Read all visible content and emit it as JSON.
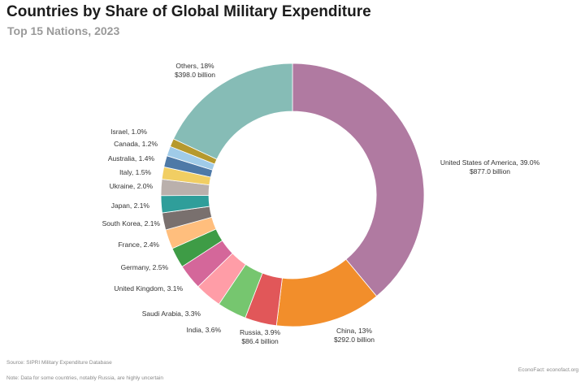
{
  "title": "Countries by Share of Global Military Expenditure",
  "subtitle": "Top 15 Nations, 2023",
  "footer": {
    "source": "Source: SIPRI Military Expenditure Database",
    "note": "Note: Data for some countries, notably Russia, are highly uncertain",
    "credit": "EconoFact: econofact.org"
  },
  "chart_data": {
    "type": "pie",
    "donut": true,
    "title": "Countries by Share of Global Military Expenditure",
    "subtitle": "Top 15 Nations, 2023",
    "unit": "%",
    "slices": [
      {
        "name": "United States of America",
        "value": 39.0,
        "display": "United States of America, 39.0%",
        "amount": "$877.0 billion",
        "color": "#b07aa1"
      },
      {
        "name": "China",
        "value": 13,
        "display": "China, 13%",
        "amount": "$292.0 billion",
        "color": "#f28e2b"
      },
      {
        "name": "Russia",
        "value": 3.9,
        "display": "Russia, 3.9%",
        "amount": "$86.4 billion",
        "color": "#e15759"
      },
      {
        "name": "India",
        "value": 3.6,
        "display": "India, 3.6%",
        "color": "#76c66f"
      },
      {
        "name": "Saudi Arabia",
        "value": 3.3,
        "display": "Saudi Arabia, 3.3%",
        "color": "#ff9da7"
      },
      {
        "name": "United Kingdom",
        "value": 3.1,
        "display": "United Kingdom, 3.1%",
        "color": "#d4679a"
      },
      {
        "name": "Germany",
        "value": 2.5,
        "display": "Germany, 2.5%",
        "color": "#3e9c46"
      },
      {
        "name": "France",
        "value": 2.4,
        "display": "France, 2.4%",
        "color": "#ffbe7d"
      },
      {
        "name": "South Korea",
        "value": 2.1,
        "display": "South Korea, 2.1%",
        "color": "#79706e"
      },
      {
        "name": "Japan",
        "value": 2.1,
        "display": "Japan, 2.1%",
        "color": "#2f9e9a"
      },
      {
        "name": "Ukraine",
        "value": 2.0,
        "display": "Ukraine, 2.0%",
        "color": "#bab0ac"
      },
      {
        "name": "Italy",
        "value": 1.5,
        "display": "Italy, 1.5%",
        "color": "#f1ce63"
      },
      {
        "name": "Australia",
        "value": 1.4,
        "display": "Australia, 1.4%",
        "color": "#4e79a7"
      },
      {
        "name": "Canada",
        "value": 1.2,
        "display": "Canada, 1.2%",
        "color": "#a0cbe8"
      },
      {
        "name": "Israel",
        "value": 1.0,
        "display": "Israel, 1.0%",
        "color": "#b6992d"
      },
      {
        "name": "Others",
        "value": 18,
        "display": "Others, 18%",
        "amount": "$398.0 billion",
        "color": "#86bcb6"
      }
    ]
  }
}
